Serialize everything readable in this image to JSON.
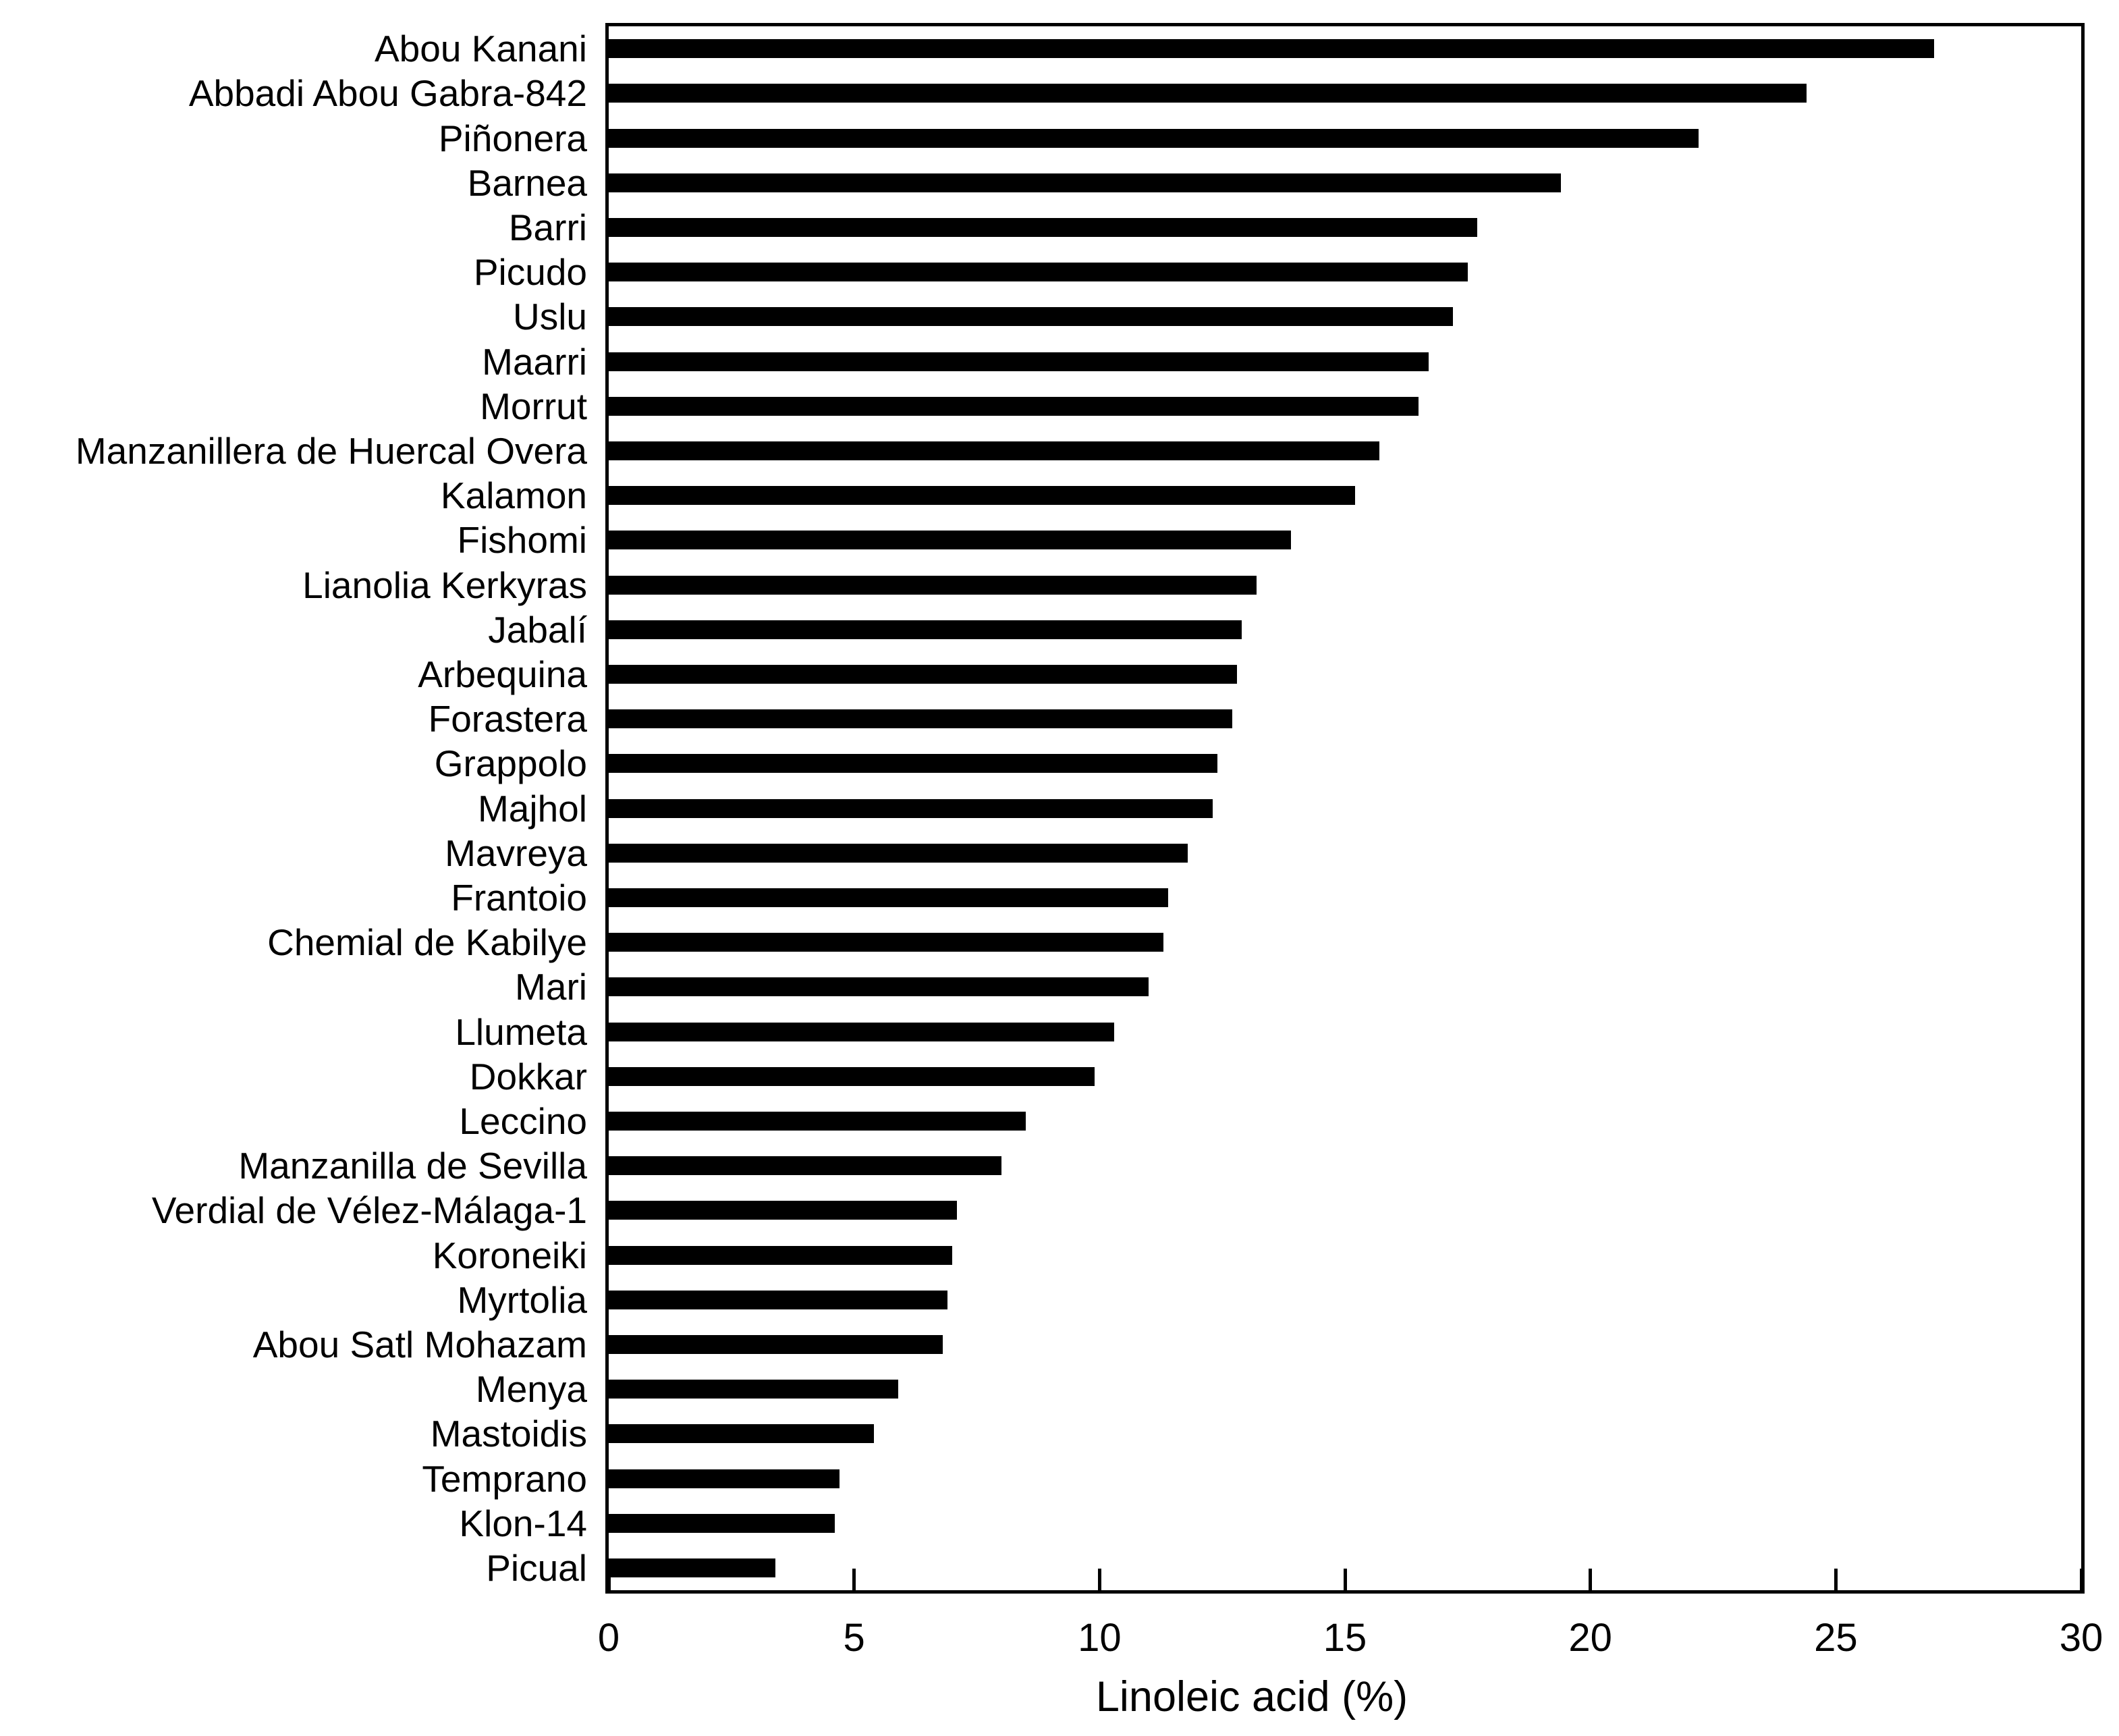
{
  "chart_data": {
    "type": "bar",
    "orientation": "horizontal",
    "title": "",
    "xlabel": "Linoleic acid (%)",
    "ylabel": "",
    "xlim": [
      0,
      30
    ],
    "xticks": [
      0,
      5,
      10,
      15,
      20,
      25,
      30
    ],
    "grid": false,
    "legend": false,
    "bar_color": "#000000",
    "axis_color": "#000000",
    "background_color": "#ffffff",
    "text_color": "#000000",
    "categories": [
      "Abou Kanani",
      "Abbadi Abou Gabra-842",
      "Piñonera",
      "Barnea",
      "Barri",
      "Picudo",
      "Uslu",
      "Maarri",
      "Morrut",
      "Manzanillera de Huercal Overa",
      "Kalamon",
      "Fishomi",
      "Lianolia Kerkyras",
      "Jabalí",
      "Arbequina",
      "Forastera",
      "Grappolo",
      "Majhol",
      "Mavreya",
      "Frantoio",
      "Chemial de Kabilye",
      "Mari",
      "Llumeta",
      "Dokkar",
      "Leccino",
      "Manzanilla de Sevilla",
      "Verdial de Vélez-Málaga-1",
      "Koroneiki",
      "Myrtolia",
      "Abou Satl Mohazam",
      "Menya",
      "Mastoidis",
      "Temprano",
      "Klon-14",
      "Picual"
    ],
    "values": [
      27.0,
      24.4,
      22.2,
      19.4,
      17.7,
      17.5,
      17.2,
      16.7,
      16.5,
      15.7,
      15.2,
      13.9,
      13.2,
      12.9,
      12.8,
      12.7,
      12.4,
      12.3,
      11.8,
      11.4,
      11.3,
      11.0,
      10.3,
      9.9,
      8.5,
      8.0,
      7.1,
      7.0,
      6.9,
      6.8,
      5.9,
      5.4,
      4.7,
      4.6,
      3.4
    ]
  }
}
